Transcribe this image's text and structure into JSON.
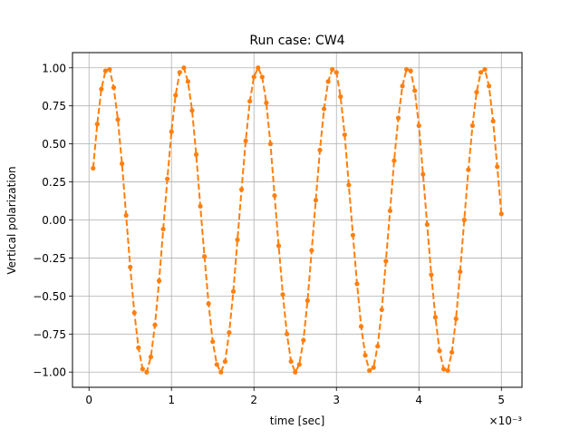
{
  "chart_data": {
    "type": "line",
    "title": "Run case: CW4",
    "xlabel": "time [sec]",
    "ylabel": "Vertical polarization",
    "x_scale_label": "×10⁻³",
    "xlim": [
      -0.2,
      5.25
    ],
    "ylim": [
      -1.1,
      1.1
    ],
    "x_ticks": [
      0,
      1,
      2,
      3,
      4,
      5
    ],
    "x_tick_labels": [
      "0",
      "1",
      "2",
      "3",
      "4",
      "5"
    ],
    "y_ticks": [
      -1.0,
      -0.75,
      -0.5,
      -0.25,
      0.0,
      0.25,
      0.5,
      0.75,
      1.0
    ],
    "y_tick_labels": [
      "−1.00",
      "−0.75",
      "−0.50",
      "−0.25",
      "0.00",
      "0.25",
      "0.50",
      "0.75",
      "1.00"
    ],
    "grid": true,
    "series": [
      {
        "color": "#ff7f0e",
        "line_style": "dashed",
        "marker": "circle",
        "x_start": 0.05,
        "x_step": 0.05,
        "values": [
          0.34,
          0.63,
          0.86,
          0.98,
          0.99,
          0.87,
          0.66,
          0.37,
          0.03,
          -0.31,
          -0.61,
          -0.84,
          -0.98,
          -1.0,
          -0.9,
          -0.69,
          -0.4,
          -0.06,
          0.27,
          0.58,
          0.82,
          0.97,
          1.0,
          0.91,
          0.72,
          0.43,
          0.09,
          -0.24,
          -0.55,
          -0.8,
          -0.95,
          -1.0,
          -0.93,
          -0.74,
          -0.47,
          -0.13,
          0.2,
          0.52,
          0.78,
          0.94,
          1.0,
          0.94,
          0.77,
          0.5,
          0.16,
          -0.17,
          -0.49,
          -0.75,
          -0.93,
          -1.0,
          -0.95,
          -0.79,
          -0.53,
          -0.2,
          0.13,
          0.46,
          0.73,
          0.91,
          0.99,
          0.97,
          0.81,
          0.56,
          0.23,
          -0.1,
          -0.42,
          -0.7,
          -0.89,
          -0.99,
          -0.97,
          -0.83,
          -0.59,
          -0.27,
          0.06,
          0.39,
          0.67,
          0.88,
          0.99,
          0.98,
          0.85,
          0.62,
          0.3,
          -0.03,
          -0.36,
          -0.64,
          -0.86,
          -0.98,
          -0.99,
          -0.87,
          -0.65,
          -0.34,
          0.0,
          0.33,
          0.62,
          0.84,
          0.97,
          0.99,
          0.88,
          0.65,
          0.35,
          0.04
        ]
      }
    ]
  }
}
